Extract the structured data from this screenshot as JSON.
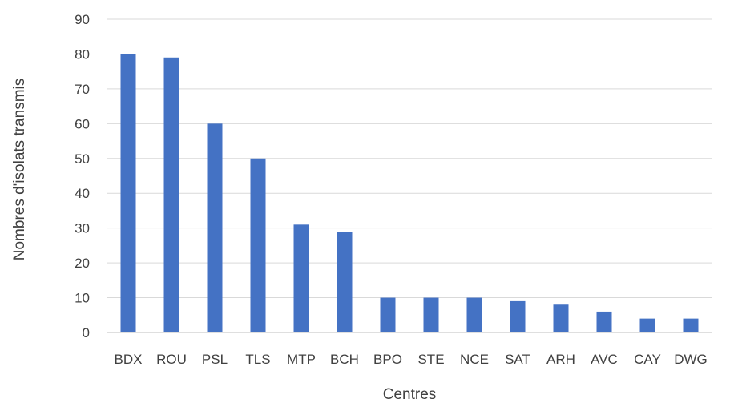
{
  "chart_data": {
    "type": "bar",
    "title": "",
    "xlabel": "Centres",
    "ylabel": "Nombres d'isolats transmis",
    "categories": [
      "BDX",
      "ROU",
      "PSL",
      "TLS",
      "MTP",
      "BCH",
      "BPO",
      "STE",
      "NCE",
      "SAT",
      "ARH",
      "AVC",
      "CAY",
      "DWG"
    ],
    "values": [
      80,
      79,
      60,
      50,
      31,
      29,
      10,
      10,
      10,
      9,
      8,
      6,
      4,
      4
    ],
    "ylim": [
      0,
      90
    ],
    "yticks": [
      0,
      10,
      20,
      30,
      40,
      50,
      60,
      70,
      80,
      90
    ],
    "grid": true,
    "legend": "none",
    "bar_color": "#4472c4",
    "grid_color": "#d9d9d9"
  }
}
